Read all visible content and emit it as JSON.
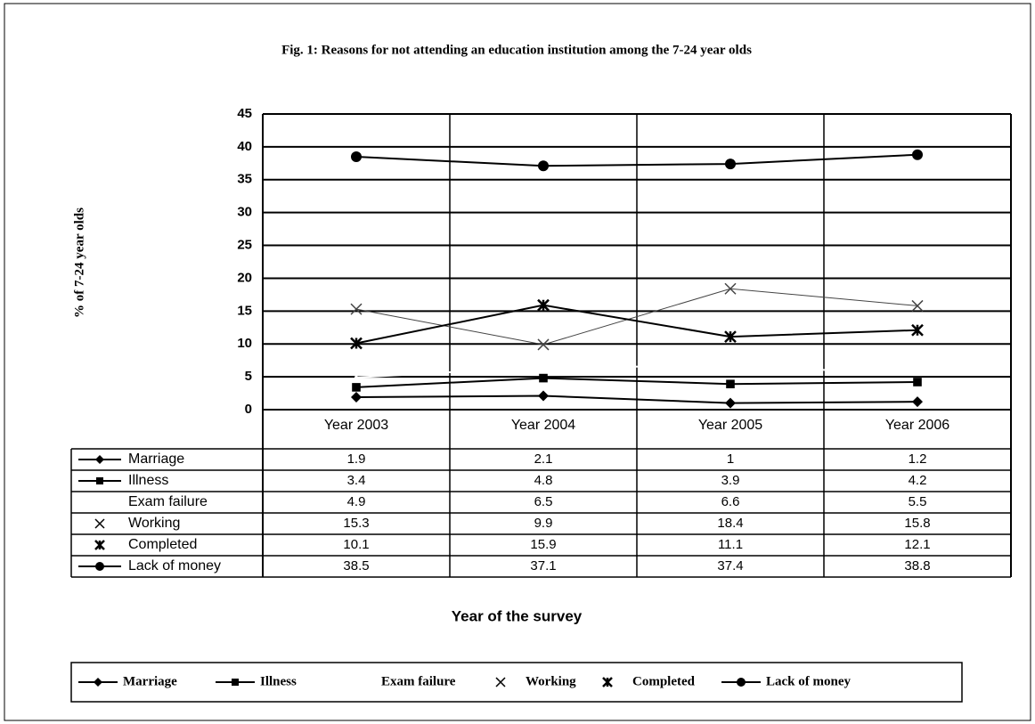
{
  "chart_data": {
    "type": "line",
    "title": "Fig. 1: Reasons for not attending an education institution among the 7-24 year olds",
    "y_label": "% of 7-24 year olds",
    "x_label": "Year of the survey",
    "categories": [
      "Year 2003",
      "Year 2004",
      "Year 2005",
      "Year 2006"
    ],
    "series": [
      {
        "name": "Marriage",
        "color": "#000000",
        "marker": "diamond",
        "values": [
          1.9,
          2.1,
          1,
          1.2
        ]
      },
      {
        "name": "Illness",
        "color": "#000000",
        "marker": "square",
        "values": [
          3.4,
          4.8,
          3.9,
          4.2
        ]
      },
      {
        "name": "Exam failure",
        "color": "#ffffff",
        "marker": "none",
        "values": [
          4.9,
          6.5,
          6.6,
          5.5
        ]
      },
      {
        "name": "Working",
        "color": "#444444",
        "marker": "x",
        "values": [
          15.3,
          9.9,
          18.4,
          15.8
        ]
      },
      {
        "name": "Completed",
        "color": "#000000",
        "marker": "asterisk",
        "values": [
          10.1,
          15.9,
          11.1,
          12.1
        ]
      },
      {
        "name": "Lack of money",
        "color": "#000000",
        "marker": "circle",
        "values": [
          38.5,
          37.1,
          37.4,
          38.8
        ]
      }
    ],
    "ylim": [
      0,
      45
    ],
    "yticks": [
      0,
      5,
      10,
      15,
      20,
      25,
      30,
      35,
      40,
      45
    ],
    "grid": true,
    "legend": "bottom"
  }
}
